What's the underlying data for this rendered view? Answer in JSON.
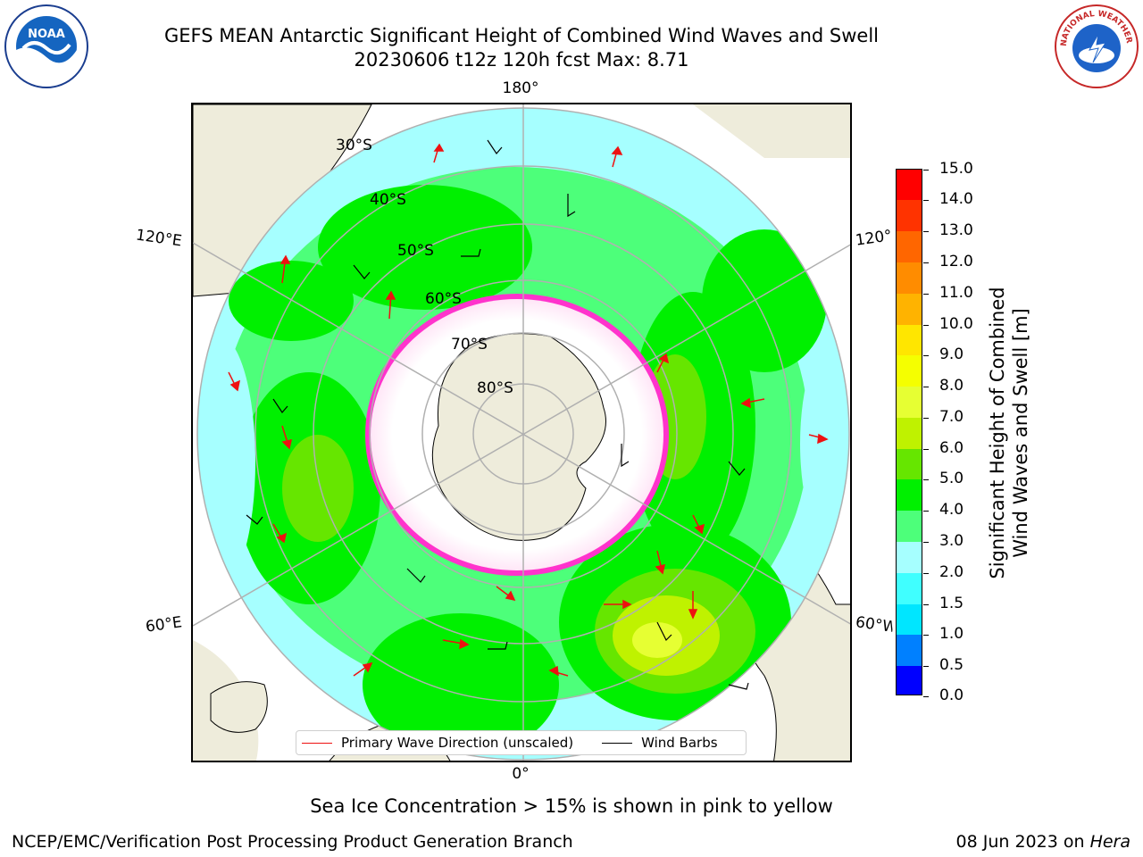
{
  "header": {
    "title_line1": "GEFS MEAN Antarctic Significant Height of Combined Wind Waves and Swell",
    "title_line2": "20230606 t12z 120h fcst   Max: 8.71"
  },
  "logos": {
    "left_text": "NOAA",
    "right_text": "NATIONAL WEATHER SERVICE"
  },
  "map": {
    "projection": "south-polar-stereographic",
    "edge_labels": {
      "top": "180°",
      "bottom": "0°",
      "left_upper": "120°E",
      "left_lower": "60°E",
      "right_upper": "120°W",
      "right_lower": "60°W"
    },
    "lat_labels": [
      "30°S",
      "40°S",
      "50°S",
      "60°S",
      "70°S",
      "80°S"
    ],
    "colors": {
      "land": "#eeecdb",
      "ice": "#ffffff",
      "ice_edge": "#ff33cc",
      "ice_edge_secondary": "#ffb347",
      "grid": "#b0b0b0",
      "arrow": "#ee1111",
      "barb": "#000000"
    }
  },
  "legend": {
    "items": [
      {
        "label": "Primary Wave Direction (unscaled)",
        "color": "#ee1111"
      },
      {
        "label": "Wind Barbs",
        "color": "#000000"
      }
    ]
  },
  "colorbar": {
    "label_line1": "Significant Height of Combined",
    "label_line2": "Wind Waves and Swell [m]",
    "ticks": [
      "15.0",
      "14.0",
      "13.0",
      "12.0",
      "11.0",
      "10.0",
      "9.0",
      "8.0",
      "7.0",
      "6.0",
      "5.0",
      "4.0",
      "3.0",
      "2.0",
      "1.5",
      "1.0",
      "0.5",
      "0.0"
    ],
    "bins_bottom_to_top": [
      {
        "from": 0.0,
        "to": 0.5,
        "color": "#0000ff"
      },
      {
        "from": 0.5,
        "to": 1.0,
        "color": "#0080ff"
      },
      {
        "from": 1.0,
        "to": 1.5,
        "color": "#00e6ff"
      },
      {
        "from": 1.5,
        "to": 2.0,
        "color": "#40ffff"
      },
      {
        "from": 2.0,
        "to": 3.0,
        "color": "#a6ffff"
      },
      {
        "from": 3.0,
        "to": 4.0,
        "color": "#4dff7a"
      },
      {
        "from": 4.0,
        "to": 5.0,
        "color": "#00f000"
      },
      {
        "from": 5.0,
        "to": 6.0,
        "color": "#66e600"
      },
      {
        "from": 6.0,
        "to": 7.0,
        "color": "#bff200"
      },
      {
        "from": 7.0,
        "to": 8.0,
        "color": "#e6ff33"
      },
      {
        "from": 8.0,
        "to": 9.0,
        "color": "#f5ff00"
      },
      {
        "from": 9.0,
        "to": 10.0,
        "color": "#ffe600"
      },
      {
        "from": 10.0,
        "to": 11.0,
        "color": "#ffb300"
      },
      {
        "from": 11.0,
        "to": 12.0,
        "color": "#ff8c00"
      },
      {
        "from": 12.0,
        "to": 13.0,
        "color": "#ff6600"
      },
      {
        "from": 13.0,
        "to": 14.0,
        "color": "#ff3300"
      },
      {
        "from": 14.0,
        "to": 15.0,
        "color": "#ff0000"
      }
    ]
  },
  "notes": {
    "sea_ice": "Sea Ice Concentration > 15% is shown in pink to yellow"
  },
  "footer": {
    "left": "NCEP/EMC/Verification Post Processing Product Generation Branch",
    "right_date": "08 Jun 2023 on ",
    "right_host": "Hera"
  }
}
